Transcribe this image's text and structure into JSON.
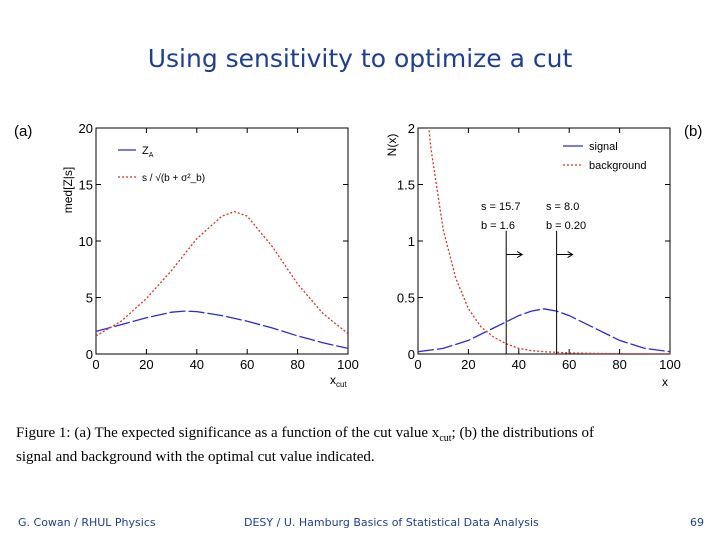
{
  "slide": {
    "title": "Using sensitivity to optimize a cut",
    "caption_line1": "Figure 1:  (a) The expected significance as a function of the cut value x",
    "caption_sub": "cut",
    "caption_line1_tail": "; (b) the distributions of",
    "caption_line2": "signal and background with the optimal cut value indicated.",
    "footer_left": "G. Cowan / RHUL Physics",
    "footer_center": "DESY / U. Hamburg Basics of Statistical Data Analysis",
    "footer_page": "69"
  },
  "chart_data": [
    {
      "type": "line",
      "panel_label": "(a)",
      "xlabel": "x",
      "xlabel_sub": "cut",
      "ylabel": "med[Z|s]",
      "xlim": [
        0,
        100
      ],
      "ylim": [
        0,
        20
      ],
      "xticks": [
        "0",
        "20",
        "40",
        "60",
        "80",
        "100"
      ],
      "yticks": [
        "0",
        "5",
        "10",
        "15",
        "20"
      ],
      "legend_position": "top-left",
      "series": [
        {
          "name": "Z",
          "name_sub": "A",
          "color": "#2b2bd6",
          "dash": "long-dash",
          "x": [
            0,
            10,
            20,
            30,
            35,
            40,
            50,
            60,
            70,
            80,
            90,
            100
          ],
          "y": [
            2.0,
            2.6,
            3.2,
            3.7,
            3.8,
            3.75,
            3.4,
            2.9,
            2.3,
            1.6,
            1.0,
            0.5
          ]
        },
        {
          "name": "s / √(b + σ²_b)",
          "color": "#e0302a",
          "dash": "dotted",
          "x": [
            0,
            10,
            20,
            30,
            40,
            50,
            55,
            60,
            70,
            80,
            90,
            100
          ],
          "y": [
            1.6,
            2.9,
            4.9,
            7.4,
            10.2,
            12.2,
            12.6,
            12.2,
            9.5,
            6.2,
            3.6,
            1.8
          ]
        }
      ]
    },
    {
      "type": "line",
      "panel_label": "(b)",
      "xlabel": "x",
      "ylabel": "N(x)",
      "xlim": [
        0,
        100
      ],
      "ylim": [
        0,
        2
      ],
      "xticks": [
        "0",
        "20",
        "40",
        "60",
        "80",
        "100"
      ],
      "yticks": [
        "0",
        "0.5",
        "1",
        "1.5",
        "2"
      ],
      "legend_position": "top-right",
      "series": [
        {
          "name": "signal",
          "color": "#2b2bd6",
          "dash": "long-dash",
          "x": [
            0,
            10,
            20,
            30,
            40,
            45,
            50,
            55,
            60,
            70,
            80,
            90,
            100
          ],
          "y": [
            0.02,
            0.05,
            0.12,
            0.23,
            0.34,
            0.38,
            0.4,
            0.38,
            0.34,
            0.23,
            0.12,
            0.05,
            0.02
          ]
        },
        {
          "name": "background",
          "color": "#e0302a",
          "dash": "dotted",
          "x": [
            0,
            5,
            10,
            15,
            20,
            25,
            30,
            35,
            40,
            45,
            50,
            60,
            70,
            80,
            100
          ],
          "y": [
            3.0,
            1.84,
            1.1,
            0.67,
            0.4,
            0.24,
            0.15,
            0.09,
            0.05,
            0.03,
            0.02,
            0.01,
            0.005,
            0.003,
            0.001
          ]
        }
      ],
      "cuts": [
        {
          "x": 35,
          "s": "s = 15.7",
          "b": "b = 1.6"
        },
        {
          "x": 55,
          "s": "s = 8.0",
          "b": "b = 0.20"
        }
      ]
    }
  ]
}
